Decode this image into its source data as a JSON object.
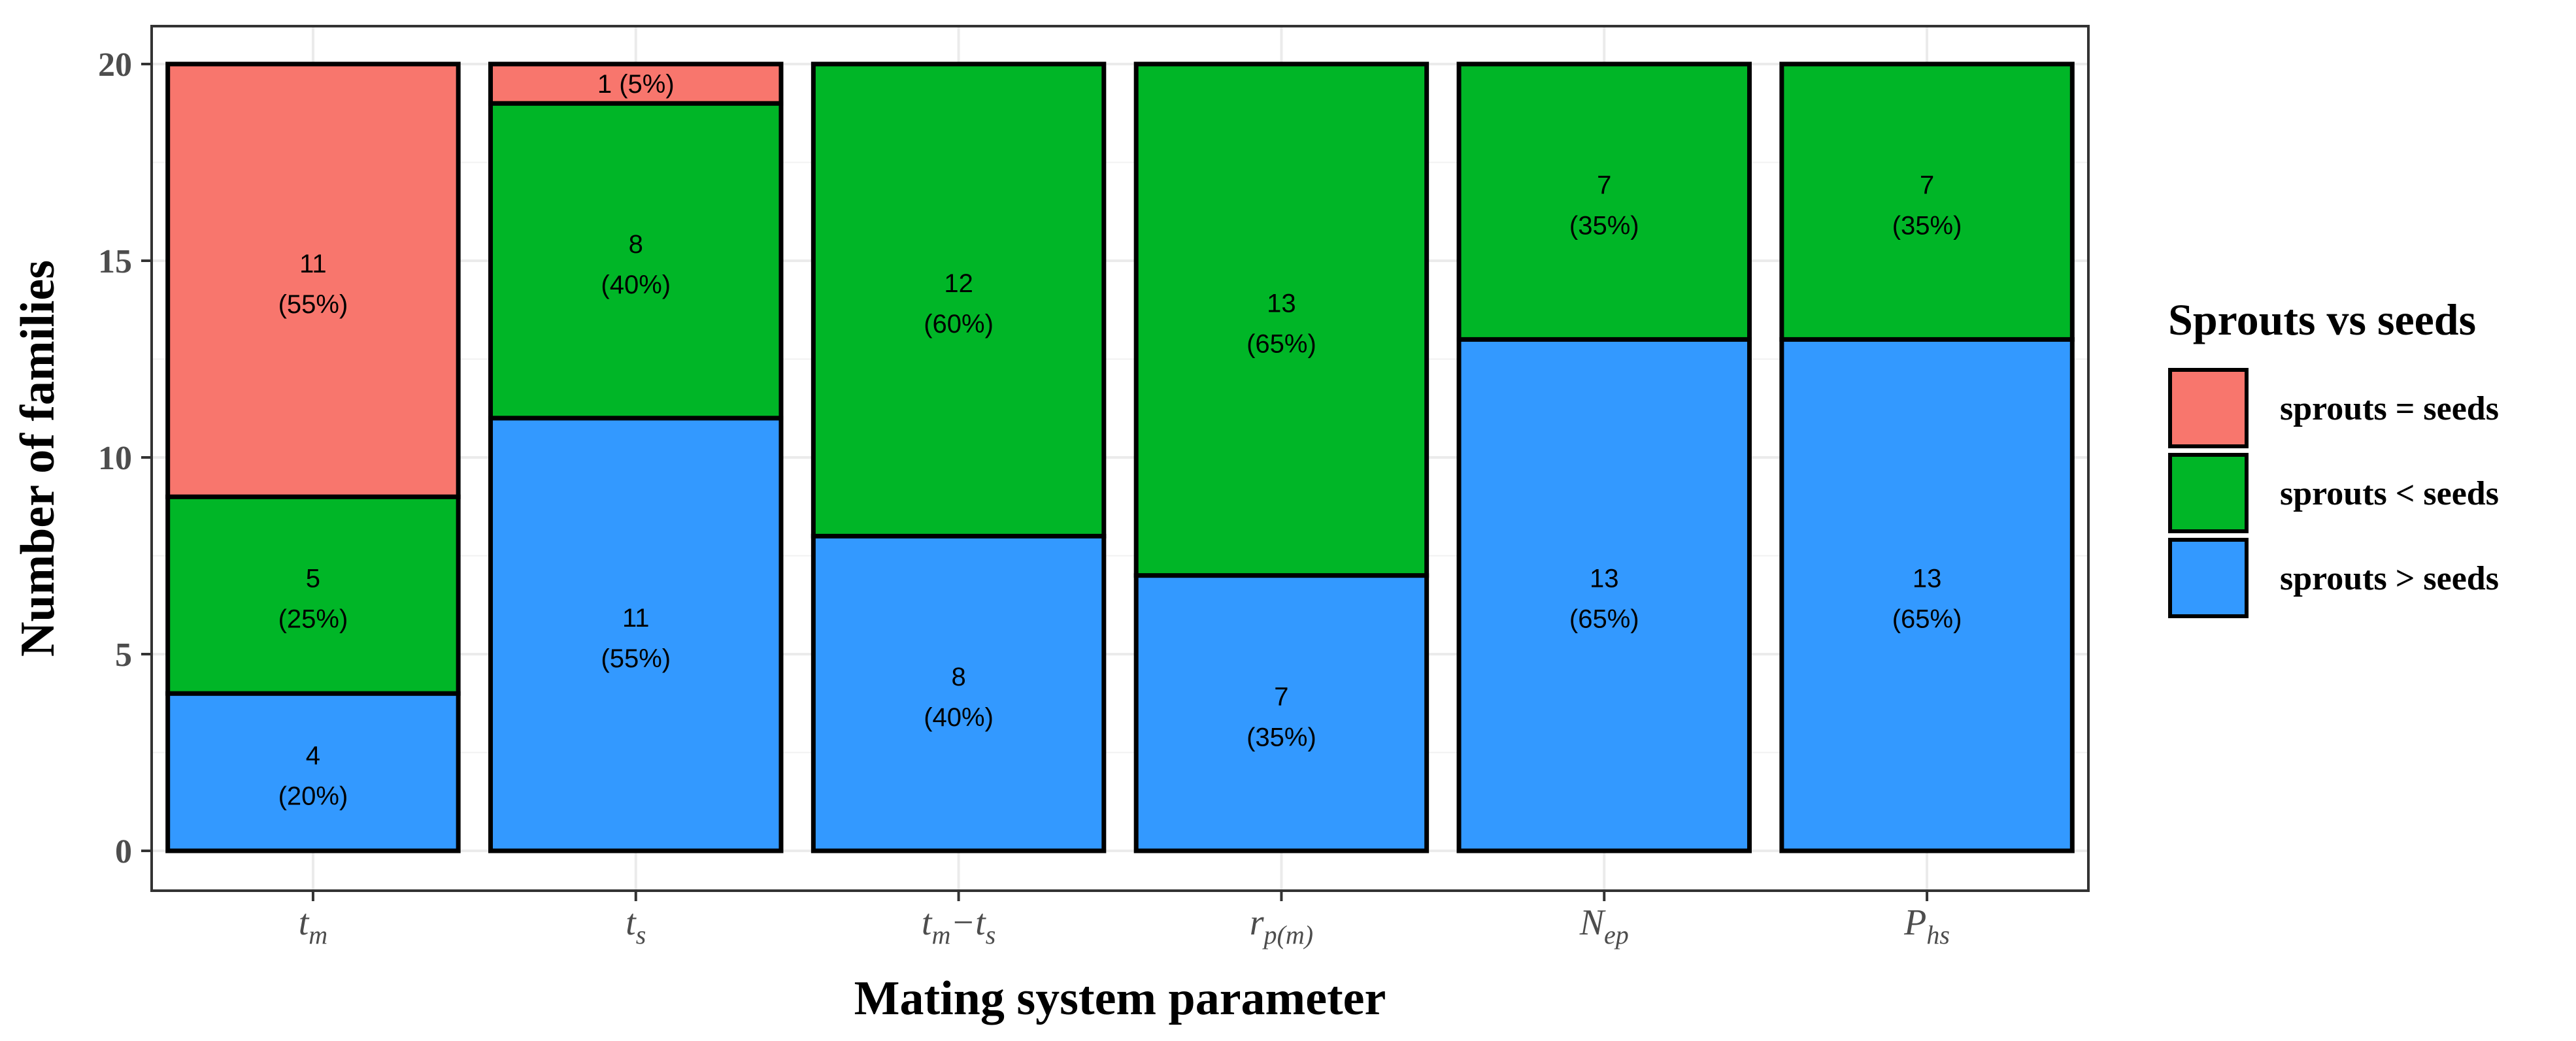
{
  "chart_data": {
    "type": "bar",
    "stacked": true,
    "xlabel": "Mating system parameter",
    "ylabel": "Number of families",
    "ylim": [
      0,
      20
    ],
    "yticks": [
      0,
      5,
      10,
      15,
      20
    ],
    "grid": true,
    "categories": [
      {
        "base": "t",
        "sub": "m"
      },
      {
        "base": "t",
        "sub": "s"
      },
      {
        "base": "t",
        "sub": "m",
        "mid": "−",
        "base2": "t",
        "sub2": "s"
      },
      {
        "base": "r",
        "sub": "p(m)"
      },
      {
        "base": "N",
        "sub": "ep"
      },
      {
        "base": "P",
        "sub": "hs"
      }
    ],
    "legend": {
      "title": "Sprouts vs seeds",
      "position": "right"
    },
    "series": [
      {
        "name": "sprouts > seeds",
        "color": "#3399FF",
        "values": [
          4,
          11,
          8,
          7,
          13,
          13
        ],
        "labels": [
          [
            "4",
            "(20%)"
          ],
          [
            "11",
            "(55%)"
          ],
          [
            "8",
            "(40%)"
          ],
          [
            "7",
            "(35%)"
          ],
          [
            "13",
            "(65%)"
          ],
          [
            "13",
            "(65%)"
          ]
        ]
      },
      {
        "name": "sprouts < seeds",
        "color": "#00B627",
        "values": [
          5,
          8,
          12,
          13,
          7,
          7
        ],
        "labels": [
          [
            "5",
            "(25%)"
          ],
          [
            "8",
            "(40%)"
          ],
          [
            "12",
            "(60%)"
          ],
          [
            "13",
            "(65%)"
          ],
          [
            "7",
            "(35%)"
          ],
          [
            "7",
            "(35%)"
          ]
        ]
      },
      {
        "name": "sprouts = seeds",
        "color": "#F8766D",
        "values": [
          11,
          1,
          0,
          0,
          0,
          0
        ],
        "labels": [
          [
            "11",
            "(55%)"
          ],
          [
            "1 (5%)"
          ],
          [],
          [],
          [],
          []
        ]
      }
    ],
    "legend_order": [
      "sprouts = seeds",
      "sprouts < seeds",
      "sprouts > seeds"
    ]
  }
}
